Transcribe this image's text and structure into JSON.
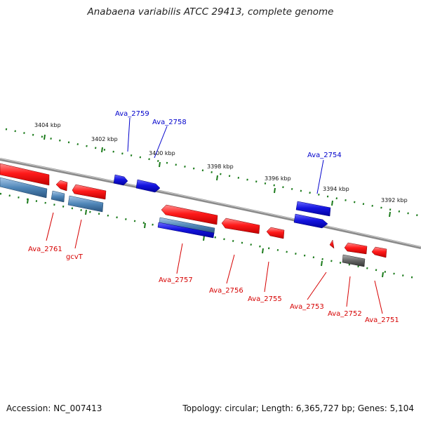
{
  "title": "Anabaena variabilis ATCC 29413, complete genome",
  "accession": "Accession: NC_007413",
  "summary": "Topology: circular; Length: 6,365,727 bp; Genes: 5,104",
  "colors": {
    "forward": "#ff1a1a",
    "reverse": "#1515e0",
    "rna": "#4f86b8",
    "other": "#6a6a6a",
    "ticks": "#1a7a1a",
    "backbone": "#8a8a8a"
  },
  "scale": {
    "labels": [
      {
        "id": "k3404",
        "text": "3404 kbp"
      },
      {
        "id": "k3402",
        "text": "3402 kbp"
      },
      {
        "id": "k3400",
        "text": "3400 kbp"
      },
      {
        "id": "k3398",
        "text": "3398 kbp"
      },
      {
        "id": "k3396",
        "text": "3396 kbp"
      },
      {
        "id": "k3394",
        "text": "3394 kbp"
      },
      {
        "id": "k3392",
        "text": "3392 kbp"
      }
    ]
  },
  "genes": [
    {
      "id": "ava2761",
      "label": "Ava_2761",
      "strand": "forward"
    },
    {
      "id": "gcvt",
      "label": "gcvT",
      "strand": "forward"
    },
    {
      "id": "ava2759",
      "label": "Ava_2759",
      "strand": "reverse"
    },
    {
      "id": "ava2758",
      "label": "Ava_2758",
      "strand": "reverse"
    },
    {
      "id": "ava2757",
      "label": "Ava_2757",
      "strand": "forward"
    },
    {
      "id": "ava2756",
      "label": "Ava_2756",
      "strand": "forward"
    },
    {
      "id": "ava2755",
      "label": "Ava_2755",
      "strand": "forward"
    },
    {
      "id": "ava2754",
      "label": "Ava_2754",
      "strand": "reverse"
    },
    {
      "id": "ava2753",
      "label": "Ava_2753",
      "strand": "forward"
    },
    {
      "id": "ava2752",
      "label": "Ava_2752",
      "strand": "forward"
    },
    {
      "id": "ava2751",
      "label": "Ava_2751",
      "strand": "forward"
    }
  ]
}
